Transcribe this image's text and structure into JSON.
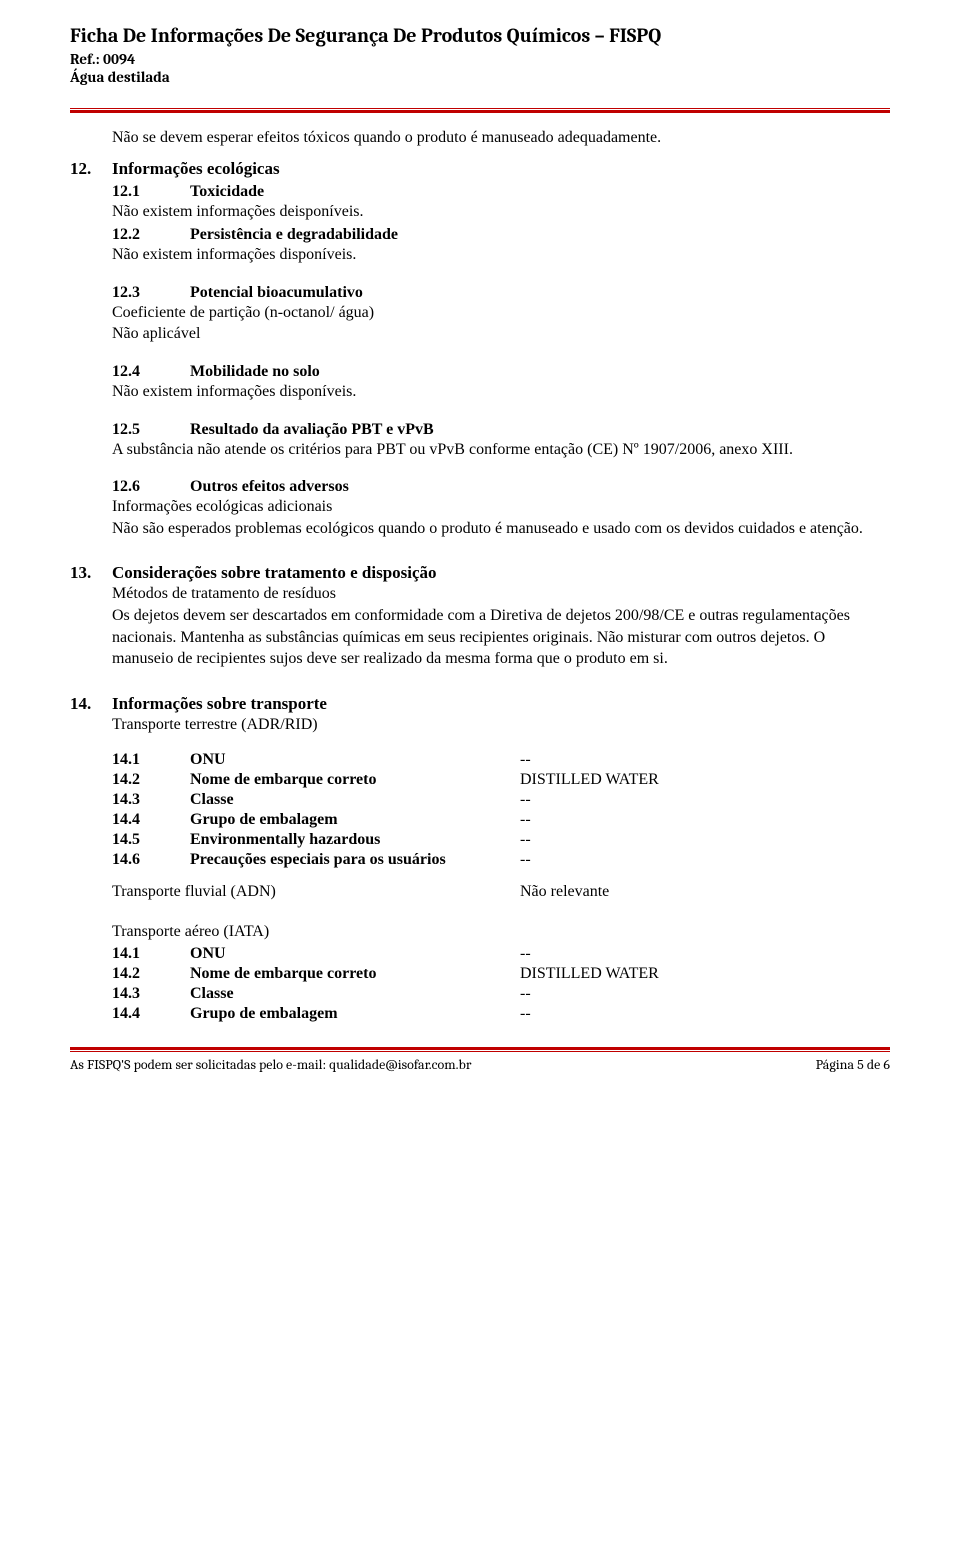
{
  "header": {
    "title": "Ficha De Informações De Segurança De Produtos Químicos – FISPQ",
    "ref": "Ref.: 0094",
    "product": "Água destilada"
  },
  "intro_text": "Não se devem esperar efeitos tóxicos quando o produto é manuseado adequadamente.",
  "s12": {
    "num": "12.",
    "title": "Informações ecológicas",
    "s1": {
      "num": "12.1",
      "title": "Toxicidade",
      "body": "Não existem informações deisponíveis."
    },
    "s2": {
      "num": "12.2",
      "title": "Persistência e degradabilidade",
      "body": "Não existem informações disponíveis."
    },
    "s3": {
      "num": "12.3",
      "title": "Potencial bioacumulativo",
      "body1": "Coeficiente de partição (n-octanol/ água)",
      "body2": "Não aplicável"
    },
    "s4": {
      "num": "12.4",
      "title": "Mobilidade no solo",
      "body": "Não existem informações disponíveis."
    },
    "s5": {
      "num": "12.5",
      "title": "Resultado da avaliação PBT e vPvB",
      "body": "A substância não atende os critérios para PBT ou vPvB conforme entação (CE) Nº 1907/2006, anexo XIII."
    },
    "s6": {
      "num": "12.6",
      "title": "Outros efeitos adversos",
      "sub": "Informações ecológicas adicionais",
      "body": "Não são esperados problemas ecológicos quando o produto é manuseado e usado com os devidos cuidados e atenção."
    }
  },
  "s13": {
    "num": "13.",
    "title": "Considerações sobre tratamento e disposição",
    "sub": "Métodos de tratamento de resíduos",
    "body": "Os dejetos devem ser descartados em conformidade com a Diretiva de dejetos 200/98/CE e outras regulamentações nacionais. Mantenha as substâncias químicas em seus recipientes originais. Não misturar com outros dejetos. O manuseio de recipientes sujos deve ser realizado da mesma forma que o produto em si."
  },
  "s14": {
    "num": "14.",
    "title": "Informações sobre transporte",
    "sub": "Transporte terrestre (ADR/RID)",
    "rows1": [
      {
        "num": "14.1",
        "label": "ONU",
        "val": "--"
      },
      {
        "num": "14.2",
        "label": "Nome de embarque correto",
        "val": "DISTILLED WATER"
      },
      {
        "num": "14.3",
        "label": "Classe",
        "val": "--"
      },
      {
        "num": "14.4",
        "label": "Grupo de embalagem",
        "val": "--"
      },
      {
        "num": "14.5",
        "label": "Environmentally hazardous",
        "val": "--"
      },
      {
        "num": "14.6",
        "label": "Precauções especiais para os usuários",
        "val": "--"
      }
    ],
    "fluvial": {
      "label": "Transporte fluvial (ADN)",
      "val": "Não relevante"
    },
    "aereo_label": "Transporte aéreo (IATA)",
    "rows2": [
      {
        "num": "14.1",
        "label": "ONU",
        "val": "--"
      },
      {
        "num": "14.2",
        "label": "Nome de embarque correto",
        "val": "DISTILLED WATER"
      },
      {
        "num": "14.3",
        "label": "Classe",
        "val": "--"
      },
      {
        "num": "14.4",
        "label": "Grupo de embalagem",
        "val": "--"
      }
    ]
  },
  "footer": {
    "left": "As FISPQ'S podem ser solicitadas pelo e-mail: qualidade@isofar.com.br",
    "right": "Página 5 de 6"
  }
}
